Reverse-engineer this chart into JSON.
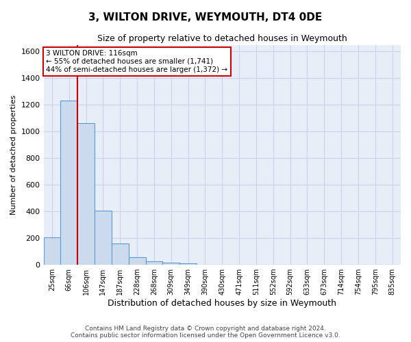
{
  "title": "3, WILTON DRIVE, WEYMOUTH, DT4 0DE",
  "subtitle": "Size of property relative to detached houses in Weymouth",
  "xlabel": "Distribution of detached houses by size in Weymouth",
  "ylabel": "Number of detached properties",
  "categories": [
    "25sqm",
    "66sqm",
    "106sqm",
    "147sqm",
    "187sqm",
    "228sqm",
    "268sqm",
    "309sqm",
    "349sqm",
    "390sqm",
    "430sqm",
    "471sqm",
    "511sqm",
    "552sqm",
    "592sqm",
    "633sqm",
    "673sqm",
    "714sqm",
    "754sqm",
    "795sqm",
    "835sqm"
  ],
  "values": [
    205,
    1230,
    1065,
    408,
    162,
    55,
    28,
    18,
    10,
    0,
    0,
    0,
    0,
    0,
    0,
    0,
    0,
    0,
    0,
    0,
    0
  ],
  "bar_color": "#ccdaee",
  "bar_edge_color": "#5b9bd5",
  "grid_color": "#c8d4e8",
  "vline_x": 1.5,
  "vline_color": "#cc0000",
  "annotation_text": "3 WILTON DRIVE: 116sqm\n← 55% of detached houses are smaller (1,741)\n44% of semi-detached houses are larger (1,372) →",
  "annotation_box_color": "#ffffff",
  "annotation_border_color": "#cc0000",
  "ylim": [
    0,
    1650
  ],
  "yticks": [
    0,
    200,
    400,
    600,
    800,
    1000,
    1200,
    1400,
    1600
  ],
  "footer_line1": "Contains HM Land Registry data © Crown copyright and database right 2024.",
  "footer_line2": "Contains public sector information licensed under the Open Government Licence v3.0.",
  "background_color": "#ffffff",
  "plot_bg_color": "#e8eef8"
}
